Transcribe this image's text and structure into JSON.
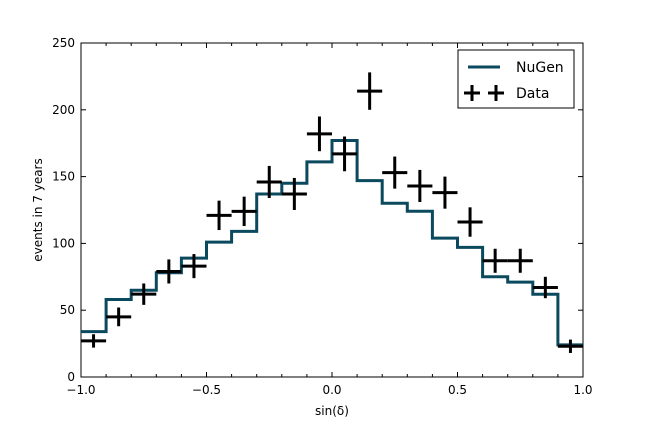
{
  "chart_data": {
    "type": "line",
    "xlabel": "sin(δ)",
    "ylabel": "events in 7 years",
    "xlim": [
      -1.0,
      1.0
    ],
    "ylim": [
      0,
      250
    ],
    "x_ticks": [
      "−1.0",
      "−0.5",
      "0.0",
      "0.5",
      "1.0"
    ],
    "y_ticks": [
      "0",
      "50",
      "100",
      "150",
      "200",
      "250"
    ],
    "legend_position": "top-right",
    "bin_edges": [
      -1.0,
      -0.9,
      -0.8,
      -0.7,
      -0.6,
      -0.5,
      -0.4,
      -0.3,
      -0.2,
      -0.1,
      0.0,
      0.1,
      0.2,
      0.3,
      0.4,
      0.5,
      0.6,
      0.7,
      0.8,
      0.9,
      1.0
    ],
    "series": [
      {
        "name": "NuGen",
        "style": "step",
        "color": "#0b4a5e",
        "values": [
          34,
          58,
          65,
          78,
          89,
          101,
          109,
          137,
          145,
          161,
          177,
          147,
          130,
          124,
          104,
          97,
          75,
          71,
          62,
          24
        ]
      },
      {
        "name": "Data",
        "style": "errorbar",
        "color": "#000000",
        "x": [
          -0.95,
          -0.85,
          -0.75,
          -0.65,
          -0.55,
          -0.45,
          -0.35,
          -0.25,
          -0.15,
          -0.05,
          0.05,
          0.15,
          0.25,
          0.35,
          0.45,
          0.55,
          0.65,
          0.75,
          0.85,
          0.95
        ],
        "values": [
          27,
          45,
          62,
          79,
          83,
          121,
          124,
          146,
          137,
          182,
          167,
          214,
          153,
          143,
          138,
          116,
          87,
          87,
          67,
          23
        ],
        "errors": [
          5,
          7,
          8,
          9,
          9,
          11,
          11,
          12,
          12,
          13,
          13,
          14,
          12,
          12,
          12,
          11,
          9,
          9,
          8,
          5
        ]
      }
    ]
  }
}
